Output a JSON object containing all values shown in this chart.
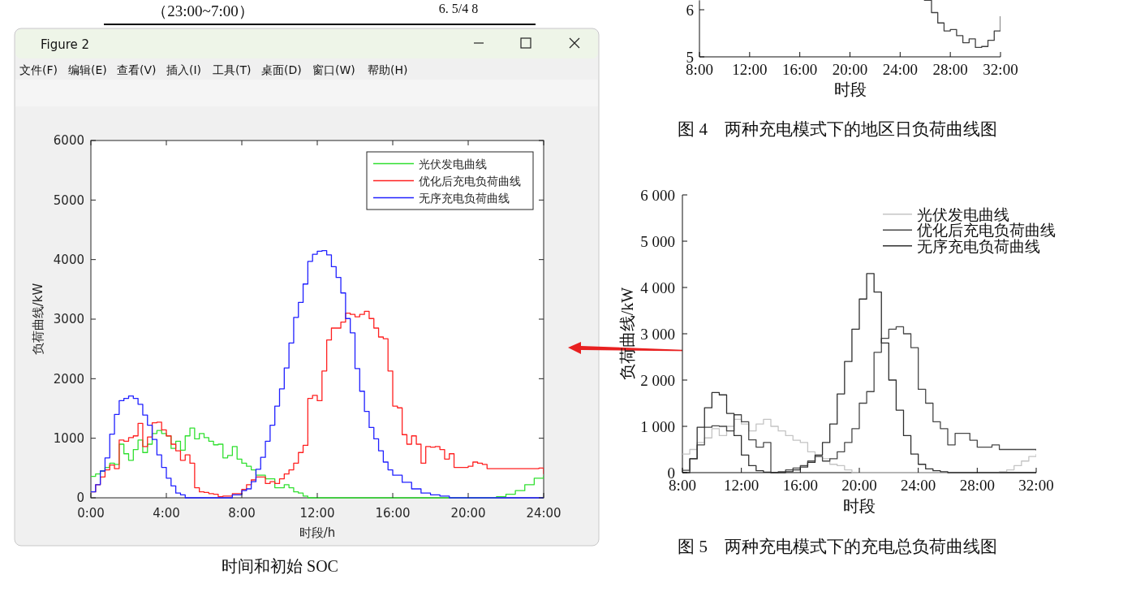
{
  "chart_data": [
    {
      "type": "step",
      "xlabel": "时段/h",
      "ylabel": "负荷曲线/kW",
      "xlim": [
        0,
        24
      ],
      "ylim": [
        0,
        6000
      ],
      "xticks": [
        {
          "value": 0,
          "label": "0:00"
        },
        {
          "value": 4,
          "label": "4:00"
        },
        {
          "value": 8,
          "label": "8:00"
        },
        {
          "value": 12,
          "label": "12:00"
        },
        {
          "value": 16,
          "label": "16:00"
        },
        {
          "value": 20,
          "label": "20:00"
        },
        {
          "value": 24,
          "label": "24:00"
        }
      ],
      "yticks": [
        0,
        1000,
        2000,
        3000,
        4000,
        5000,
        6000
      ],
      "legend": "top right",
      "annotations": [
        "（23:00~7:00）",
        "6. 5/4 8",
        "Figure 2",
        "文件(F)",
        "编辑(E)",
        "查看(V)",
        "插入(I)",
        "工具(T)",
        "桌面(D)",
        "窗口(W)",
        "帮助(H)",
        "时间和初始 SOC"
      ],
      "series": [
        {
          "name": "光伏发电曲线",
          "color": "#30e030",
          "x": [
            0,
            0.25,
            0.5,
            0.75,
            1,
            1.25,
            1.5,
            1.75,
            2,
            2.25,
            2.5,
            2.75,
            3,
            3.25,
            3.5,
            3.75,
            4,
            4.25,
            4.5,
            4.75,
            5,
            5.25,
            5.5,
            5.75,
            6,
            6.25,
            6.5,
            6.75,
            7,
            7.25,
            7.5,
            7.75,
            8,
            8.25,
            8.5,
            8.75,
            9,
            9.25,
            9.5,
            9.75,
            10,
            10.25,
            10.5,
            10.75,
            11,
            11.25,
            11.5,
            12,
            14,
            16,
            18,
            20,
            21,
            21.5,
            22,
            22.5,
            23,
            23.5,
            24
          ],
          "values": [
            360,
            400,
            450,
            510,
            580,
            560,
            900,
            740,
            630,
            810,
            970,
            760,
            900,
            1080,
            1130,
            1080,
            1040,
            830,
            950,
            800,
            1040,
            1170,
            990,
            1080,
            1010,
            950,
            890,
            900,
            670,
            710,
            860,
            650,
            580,
            530,
            470,
            380,
            380,
            320,
            320,
            170,
            170,
            220,
            170,
            100,
            80,
            30,
            0,
            0,
            0,
            0,
            0,
            0,
            0,
            20,
            60,
            120,
            220,
            330,
            370
          ]
        },
        {
          "name": "优化后充电负荷曲线",
          "color": "#ff2020",
          "x": [
            0,
            0.25,
            0.5,
            0.75,
            1,
            1.25,
            1.5,
            1.75,
            2,
            2.25,
            2.5,
            2.75,
            3,
            3.25,
            3.5,
            3.75,
            4,
            4.25,
            4.5,
            4.75,
            5,
            5.25,
            5.5,
            5.75,
            6,
            6.25,
            6.5,
            6.75,
            7,
            7.5,
            8,
            8.25,
            8.5,
            8.75,
            9,
            9.25,
            9.5,
            9.75,
            10,
            10.25,
            10.5,
            10.75,
            11,
            11.25,
            11.5,
            11.75,
            12,
            12.25,
            12.5,
            12.75,
            13,
            13.25,
            13.5,
            13.75,
            14,
            14.25,
            14.5,
            14.75,
            15,
            15.25,
            15.5,
            15.75,
            16,
            16.25,
            16.5,
            16.75,
            17,
            17.25,
            17.5,
            17.75,
            18,
            18.25,
            18.5,
            18.75,
            19,
            19.25,
            19.5,
            19.75,
            20,
            20.25,
            20.5,
            20.75,
            21,
            22,
            23,
            23.75,
            24
          ],
          "values": [
            100,
            220,
            350,
            470,
            550,
            490,
            970,
            950,
            1010,
            1040,
            1250,
            860,
            1020,
            1260,
            1270,
            1140,
            1040,
            900,
            790,
            630,
            720,
            580,
            170,
            100,
            90,
            70,
            60,
            20,
            30,
            70,
            140,
            220,
            300,
            350,
            350,
            240,
            270,
            240,
            320,
            400,
            470,
            580,
            760,
            880,
            1670,
            1720,
            1630,
            2130,
            2650,
            2850,
            2850,
            2950,
            3100,
            3080,
            3040,
            3080,
            3130,
            3010,
            2850,
            2700,
            2670,
            2130,
            1540,
            1510,
            1060,
            900,
            1040,
            900,
            580,
            860,
            850,
            860,
            810,
            650,
            740,
            510,
            510,
            510,
            530,
            600,
            580,
            560,
            490,
            490,
            490,
            500,
            400
          ]
        },
        {
          "name": "无序充电负荷曲线",
          "color": "#2020ff",
          "x": [
            0,
            0.25,
            0.5,
            0.75,
            1,
            1.25,
            1.5,
            1.75,
            2,
            2.25,
            2.5,
            2.75,
            3,
            3.25,
            3.5,
            3.75,
            4,
            4.25,
            4.5,
            4.75,
            5,
            5.5,
            6,
            6.5,
            7,
            7.5,
            8,
            8.25,
            8.5,
            8.75,
            9,
            9.25,
            9.5,
            9.75,
            10,
            10.25,
            10.5,
            10.75,
            11,
            11.25,
            11.5,
            11.75,
            12,
            12.25,
            12.5,
            12.75,
            13,
            13.25,
            13.5,
            13.75,
            14,
            14.25,
            14.5,
            14.75,
            15,
            15.25,
            15.5,
            15.75,
            16,
            16.5,
            17,
            17.5,
            18,
            18.5,
            19,
            21,
            22,
            23,
            24
          ],
          "values": [
            100,
            220,
            450,
            670,
            1070,
            1400,
            1630,
            1670,
            1710,
            1670,
            1570,
            1390,
            1220,
            980,
            720,
            510,
            330,
            200,
            80,
            50,
            0,
            0,
            0,
            0,
            0,
            50,
            120,
            150,
            270,
            480,
            680,
            950,
            1220,
            1540,
            1830,
            2180,
            2600,
            3030,
            3280,
            3590,
            3970,
            4090,
            4140,
            4150,
            4080,
            3880,
            3700,
            3440,
            3010,
            2770,
            2170,
            1790,
            1450,
            1180,
            990,
            790,
            600,
            470,
            380,
            260,
            150,
            80,
            50,
            30,
            0,
            0,
            0,
            0,
            0
          ]
        }
      ]
    },
    {
      "type": "step",
      "xlabel": "时段",
      "xlim": [
        8,
        32
      ],
      "ylim": [
        5,
        6.2
      ],
      "xticks": [
        {
          "value": 8,
          "label": "8:00"
        },
        {
          "value": 12,
          "label": "12:00"
        },
        {
          "value": 16,
          "label": "16:00"
        },
        {
          "value": 20,
          "label": "20:00"
        },
        {
          "value": 24,
          "label": "24:00"
        },
        {
          "value": 28,
          "label": "28:00"
        },
        {
          "value": 32,
          "label": "32:00"
        }
      ],
      "yticks": [
        5,
        6
      ],
      "annotations": [
        "图 4　两种充电模式下的地区日负荷曲线图"
      ],
      "series": [
        {
          "color": "#404040",
          "x": [
            25.9,
            26.5,
            27,
            27.5,
            28,
            28.5,
            29,
            29.5,
            30,
            30.5,
            31,
            31.5,
            32
          ],
          "values": [
            6.2,
            5.94,
            5.72,
            5.55,
            5.58,
            5.45,
            5.3,
            5.38,
            5.2,
            5.22,
            5.35,
            5.55,
            5.86
          ]
        }
      ]
    },
    {
      "type": "step",
      "xlabel": "时段",
      "ylabel": "负荷曲线/kW",
      "xlim": [
        8,
        32
      ],
      "ylim": [
        0,
        6000
      ],
      "xticks": [
        {
          "value": 8,
          "label": "8:00"
        },
        {
          "value": 12,
          "label": "12:00"
        },
        {
          "value": 16,
          "label": "16:00"
        },
        {
          "value": 20,
          "label": "20:00"
        },
        {
          "value": 24,
          "label": "24:00"
        },
        {
          "value": 28,
          "label": "28:00"
        },
        {
          "value": 32,
          "label": "32:00"
        }
      ],
      "yticks": [
        0,
        {
          "value": 1000,
          "label": "1 000"
        },
        {
          "value": 2000,
          "label": "2 000"
        },
        {
          "value": 3000,
          "label": "3 000"
        },
        {
          "value": 4000,
          "label": "4 000"
        },
        {
          "value": 5000,
          "label": "5 000"
        },
        {
          "value": 6000,
          "label": "6 000"
        }
      ],
      "legend": "top right",
      "annotations": [
        "图 5　两种充电模式下的充电总负荷曲线图"
      ],
      "series": [
        {
          "name": "光伏发电曲线",
          "color": "#c4c4c4",
          "x": [
            8,
            8.5,
            9,
            9.5,
            10,
            10.5,
            11,
            11.5,
            12,
            12.5,
            13,
            13.5,
            14,
            14.5,
            15,
            15.5,
            16,
            16.5,
            17,
            17.5,
            18,
            18.5,
            19,
            19.5,
            21,
            23,
            25,
            27,
            29,
            29.5,
            30,
            30.5,
            31,
            31.5,
            32
          ],
          "values": [
            400,
            500,
            650,
            750,
            950,
            800,
            1000,
            1150,
            1050,
            900,
            1050,
            1150,
            1000,
            900,
            800,
            700,
            650,
            450,
            350,
            300,
            180,
            150,
            60,
            0,
            0,
            0,
            0,
            0,
            0,
            20,
            60,
            150,
            250,
            350,
            400
          ]
        },
        {
          "name": "优化后充电负荷曲线",
          "color": "#484848",
          "x": [
            8,
            8.5,
            9,
            9.5,
            10,
            10.5,
            11,
            11.5,
            12,
            12.5,
            13,
            13.5,
            14,
            14.5,
            15,
            15.5,
            16,
            16.5,
            17,
            17.5,
            18,
            18.5,
            19,
            19.5,
            20,
            20.5,
            21,
            21.5,
            22,
            22.5,
            23,
            23.5,
            24,
            24.5,
            25,
            25.5,
            26,
            26.5,
            27,
            27.5,
            28,
            28.5,
            29,
            29.5,
            30,
            31,
            32
          ],
          "values": [
            50,
            300,
            600,
            980,
            1010,
            1000,
            900,
            1250,
            1100,
            710,
            550,
            650,
            0,
            20,
            60,
            100,
            150,
            250,
            350,
            250,
            300,
            450,
            650,
            950,
            1500,
            1750,
            2600,
            2900,
            3100,
            3150,
            3000,
            2700,
            1800,
            1500,
            1100,
            950,
            600,
            850,
            850,
            700,
            550,
            550,
            600,
            500,
            500,
            500,
            480
          ]
        },
        {
          "name": "无序充电负荷曲线",
          "color": "#303030",
          "x": [
            8,
            8.5,
            9,
            9.5,
            10,
            10.5,
            11,
            11.5,
            12,
            12.5,
            13,
            13.5,
            14,
            14.5,
            15,
            15.5,
            16,
            16.5,
            17,
            17.5,
            18,
            18.5,
            19,
            19.5,
            20,
            20.5,
            21,
            21.5,
            22,
            22.5,
            23,
            23.5,
            24,
            24.5,
            25,
            25.5,
            26,
            27,
            28,
            29,
            30,
            31,
            32
          ],
          "values": [
            0,
            300,
            980,
            1400,
            1730,
            1680,
            1280,
            800,
            380,
            150,
            40,
            10,
            0,
            0,
            20,
            60,
            120,
            220,
            380,
            650,
            1050,
            1700,
            2400,
            3100,
            3750,
            4300,
            3900,
            2800,
            2000,
            1350,
            800,
            400,
            180,
            80,
            40,
            20,
            0,
            0,
            0,
            0,
            0,
            0,
            0
          ]
        }
      ]
    }
  ]
}
